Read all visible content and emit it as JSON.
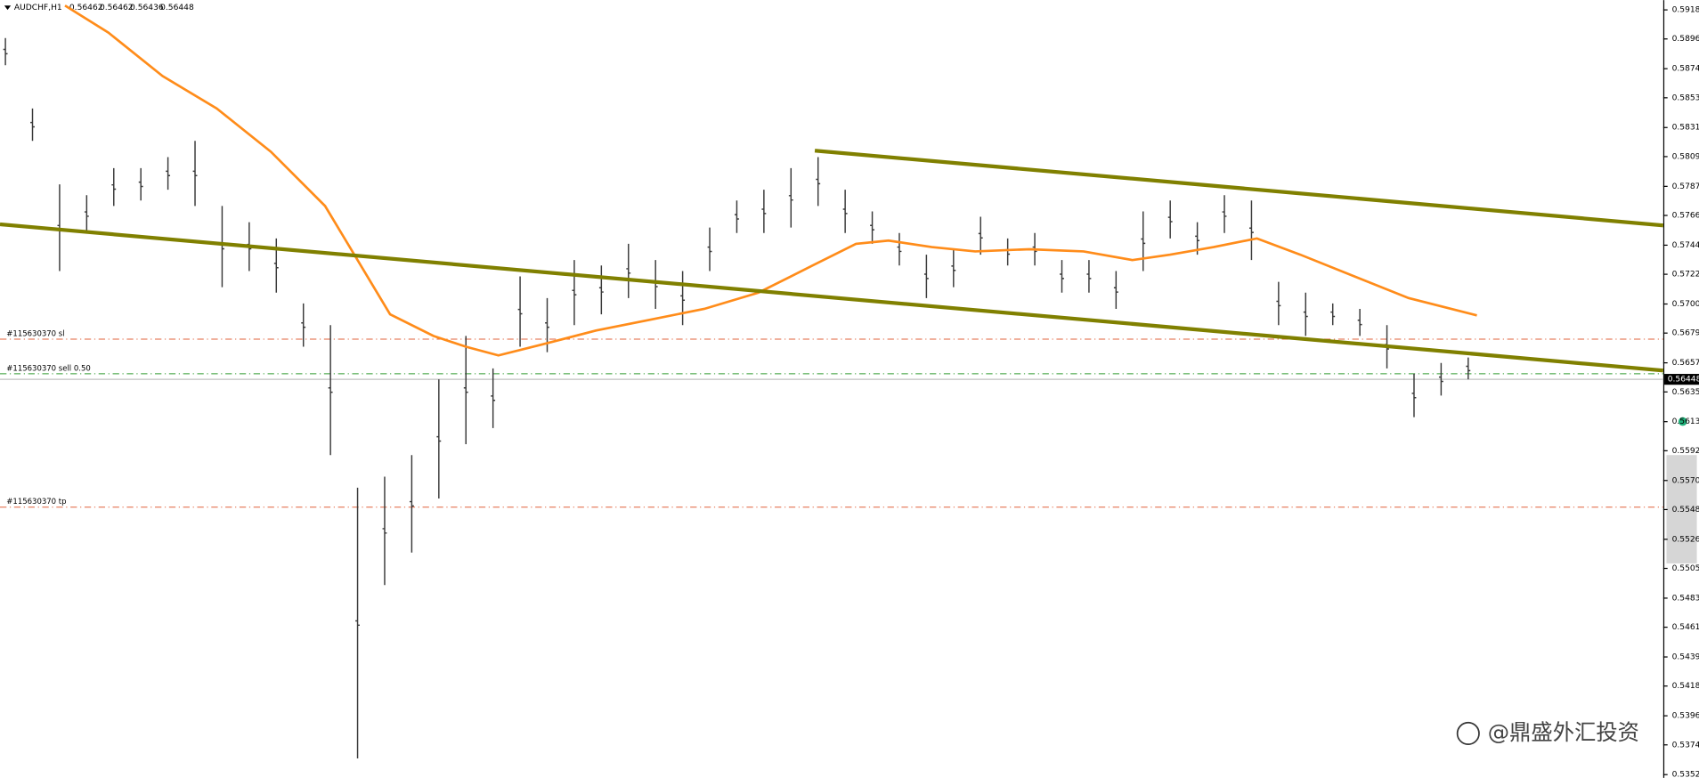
{
  "chart_data": {
    "type": "ohlc",
    "symbol": "AUDCHF,H1",
    "quote": [
      0.56462,
      0.56462,
      0.56436,
      0.56448
    ],
    "highs": [
      0.58972,
      0.58451,
      0.5789,
      0.5781,
      0.5801,
      0.5801,
      0.58091,
      0.58211,
      0.5773,
      0.5761,
      0.5749,
      0.57009,
      0.56849,
      0.55647,
      0.55728,
      0.55888,
      0.56448,
      0.56769,
      0.56529,
      0.57209,
      0.57049,
      0.5733,
      0.5729,
      0.5745,
      0.5733,
      0.57249,
      0.5757,
      0.5777,
      0.5785,
      0.5801,
      0.58091,
      0.5785,
      0.5769,
      0.5753,
      0.5737,
      0.5741,
      0.5765,
      0.5749,
      0.5753,
      0.5733,
      0.5733,
      0.57249,
      0.5769,
      0.5777,
      0.5761,
      0.5781,
      0.5777,
      0.57169,
      0.57089,
      0.57009,
      0.56969,
      0.56849,
      0.56489,
      0.56569,
      0.56609
    ],
    "lows": [
      0.58771,
      0.58211,
      0.57249,
      0.5753,
      0.5773,
      0.5777,
      0.5785,
      0.5773,
      0.57129,
      0.57249,
      0.57089,
      0.56689,
      0.55888,
      0.53645,
      0.54927,
      0.55167,
      0.55567,
      0.55968,
      0.56088,
      0.56689,
      0.56649,
      0.56849,
      0.56929,
      0.57049,
      0.56969,
      0.56849,
      0.57249,
      0.5753,
      0.5753,
      0.5757,
      0.5773,
      0.5753,
      0.5745,
      0.5729,
      0.57049,
      0.57129,
      0.5737,
      0.5729,
      0.5729,
      0.57089,
      0.57089,
      0.56969,
      0.57249,
      0.5749,
      0.5737,
      0.5753,
      0.5733,
      0.56849,
      0.56769,
      0.56849,
      0.56769,
      0.56529,
      0.56168,
      0.56328,
      0.56448
    ],
    "bar_color": "#3a3a3a",
    "xlim": [
      -0.2,
      61.2
    ],
    "ylim": [
      0.53501,
      0.59252
    ],
    "yticks": [
      {
        "value": 0.5918,
        "label": "0.59180"
      },
      0.58965,
      0.58745,
      {
        "value": 0.5853,
        "label": "0.58530"
      },
      {
        "value": 0.5831,
        "label": "0.58310"
      },
      0.58095,
      0.57875,
      {
        "value": 0.5766,
        "label": "0.57660"
      },
      {
        "value": 0.5744,
        "label": "0.57440"
      },
      0.57225,
      0.57005,
      {
        "value": 0.5679,
        "label": "0.56790"
      },
      {
        "value": 0.5657,
        "label": "0.56570"
      },
      0.56355,
      0.56135,
      {
        "value": 0.5592,
        "label": "0.55920"
      },
      {
        "value": 0.557,
        "label": "0.55700"
      },
      0.55485,
      0.55265,
      {
        "value": 0.5505,
        "label": "0.55050"
      },
      {
        "value": 0.5483,
        "label": "0.54830"
      },
      0.54615,
      0.54395,
      {
        "value": 0.5418,
        "label": "0.54180"
      },
      {
        "value": 0.5396,
        "label": "0.53960"
      },
      0.53745,
      0.53525
    ],
    "current_price": 0.56448,
    "ma": {
      "color": "#ff8c1a",
      "x": [
        2.2,
        3.8,
        5.8,
        7.8,
        9.8,
        11.8,
        13,
        14.2,
        15.8,
        17,
        18.2,
        19.8,
        21.8,
        23.8,
        25.8,
        27.8,
        29.8,
        31.4,
        32.6,
        34.2,
        35.8,
        37.8,
        39.8,
        41.6,
        43,
        44.6,
        46.2,
        47.8,
        49.8,
        51.8,
        54.32
      ],
      "values": [
        0.59212,
        0.59012,
        0.58691,
        0.58451,
        0.58131,
        0.5773,
        0.5733,
        0.56929,
        0.56769,
        0.56689,
        0.56625,
        0.56705,
        0.56809,
        0.56889,
        0.56969,
        0.57089,
        0.5729,
        0.5745,
        0.57474,
        0.57426,
        0.57394,
        0.5741,
        0.57394,
        0.5733,
        0.5737,
        0.57426,
        0.5749,
        0.5737,
        0.57209,
        0.57049,
        0.56921
      ]
    },
    "trendlines": [
      {
        "color": "#808000",
        "x": [
          -0.2,
          61.2
        ],
        "values": [
          0.57594,
          0.56513
        ]
      },
      {
        "color": "#808000",
        "x": [
          29.88,
          61.2
        ],
        "values": [
          0.58139,
          0.57586
        ]
      }
    ],
    "levels": [
      {
        "label": "#115630370 sl",
        "value": 0.56745,
        "color": "#e0603a"
      },
      {
        "label": "#115630370 sell 0.50",
        "value": 0.56489,
        "color": "#2e9a2e"
      },
      {
        "label": "#115630370 tp",
        "value": 0.55503,
        "color": "#e0603a"
      }
    ],
    "watermark": "@鼎盛外汇投资"
  }
}
